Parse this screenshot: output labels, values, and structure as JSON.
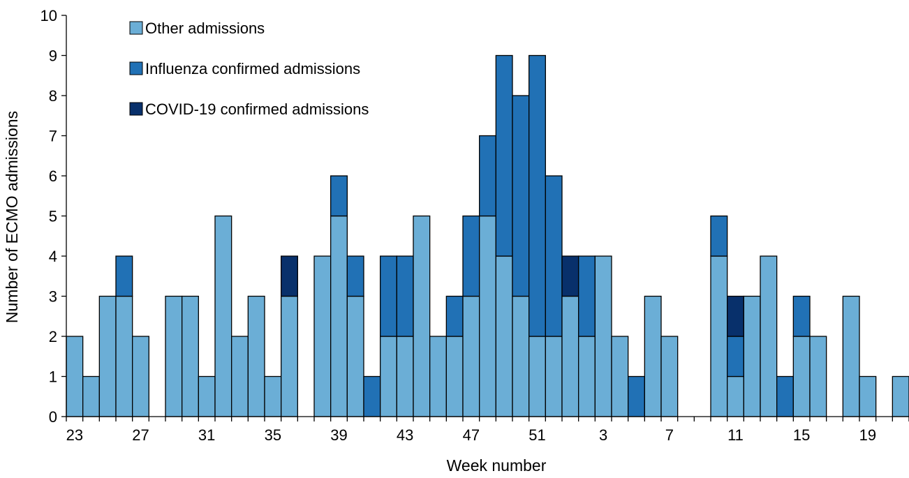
{
  "chart_data": {
    "type": "bar",
    "stacked": true,
    "title": "",
    "xlabel": "Week number",
    "ylabel": "Number of ECMO admissions",
    "ylim": [
      0,
      10
    ],
    "yticks": [
      "0",
      "1",
      "2",
      "3",
      "4",
      "5",
      "6",
      "7",
      "8",
      "9",
      "10"
    ],
    "grid": false,
    "legend_position": "top-left",
    "categories": [
      "23",
      "24",
      "25",
      "26",
      "27",
      "28",
      "29",
      "30",
      "31",
      "32",
      "33",
      "34",
      "35",
      "36",
      "37",
      "38",
      "39",
      "40",
      "41",
      "42",
      "43",
      "44",
      "45",
      "46",
      "47",
      "48",
      "49",
      "50",
      "51",
      "52",
      "1",
      "2",
      "3",
      "4",
      "5",
      "6",
      "7",
      "8",
      "9",
      "10",
      "11",
      "12",
      "13",
      "14",
      "15",
      "16",
      "17",
      "18",
      "19",
      "20",
      "21"
    ],
    "x_tick_labels": [
      "23",
      "",
      "",
      "",
      "27",
      "",
      "",
      "",
      "31",
      "",
      "",
      "",
      "35",
      "",
      "",
      "",
      "39",
      "",
      "",
      "",
      "43",
      "",
      "",
      "",
      "47",
      "",
      "",
      "",
      "51",
      "",
      "",
      "",
      "3",
      "",
      "",
      "",
      "7",
      "",
      "",
      "",
      "11",
      "",
      "",
      "",
      "15",
      "",
      "",
      "",
      "19",
      "",
      ""
    ],
    "series": [
      {
        "name": "Other admissions",
        "color": "#6BAED6",
        "values": [
          2,
          1,
          3,
          3,
          2,
          0,
          3,
          3,
          1,
          5,
          2,
          3,
          1,
          3,
          0,
          4,
          5,
          3,
          0,
          2,
          2,
          5,
          2,
          2,
          3,
          5,
          4,
          3,
          2,
          2,
          3,
          2,
          4,
          2,
          0,
          3,
          2,
          0,
          0,
          4,
          1,
          3,
          4,
          0,
          2,
          2,
          0,
          3,
          1,
          0,
          1
        ]
      },
      {
        "name": "Influenza confirmed admissions",
        "color": "#2171B5",
        "values": [
          0,
          0,
          0,
          1,
          0,
          0,
          0,
          0,
          0,
          0,
          0,
          0,
          0,
          0,
          0,
          0,
          1,
          1,
          1,
          2,
          2,
          0,
          0,
          1,
          2,
          2,
          5,
          5,
          7,
          4,
          0,
          2,
          0,
          0,
          1,
          0,
          0,
          0,
          0,
          1,
          1,
          0,
          0,
          1,
          1,
          0,
          0,
          0,
          0,
          0,
          0
        ]
      },
      {
        "name": "COVID-19 confirmed admissions",
        "color": "#08306B",
        "values": [
          0,
          0,
          0,
          0,
          0,
          0,
          0,
          0,
          0,
          0,
          0,
          0,
          0,
          1,
          0,
          0,
          0,
          0,
          0,
          0,
          0,
          0,
          0,
          0,
          0,
          0,
          0,
          0,
          0,
          0,
          1,
          0,
          0,
          0,
          0,
          0,
          0,
          0,
          0,
          0,
          1,
          0,
          0,
          0,
          0,
          0,
          0,
          0,
          0,
          0,
          0
        ]
      }
    ]
  }
}
